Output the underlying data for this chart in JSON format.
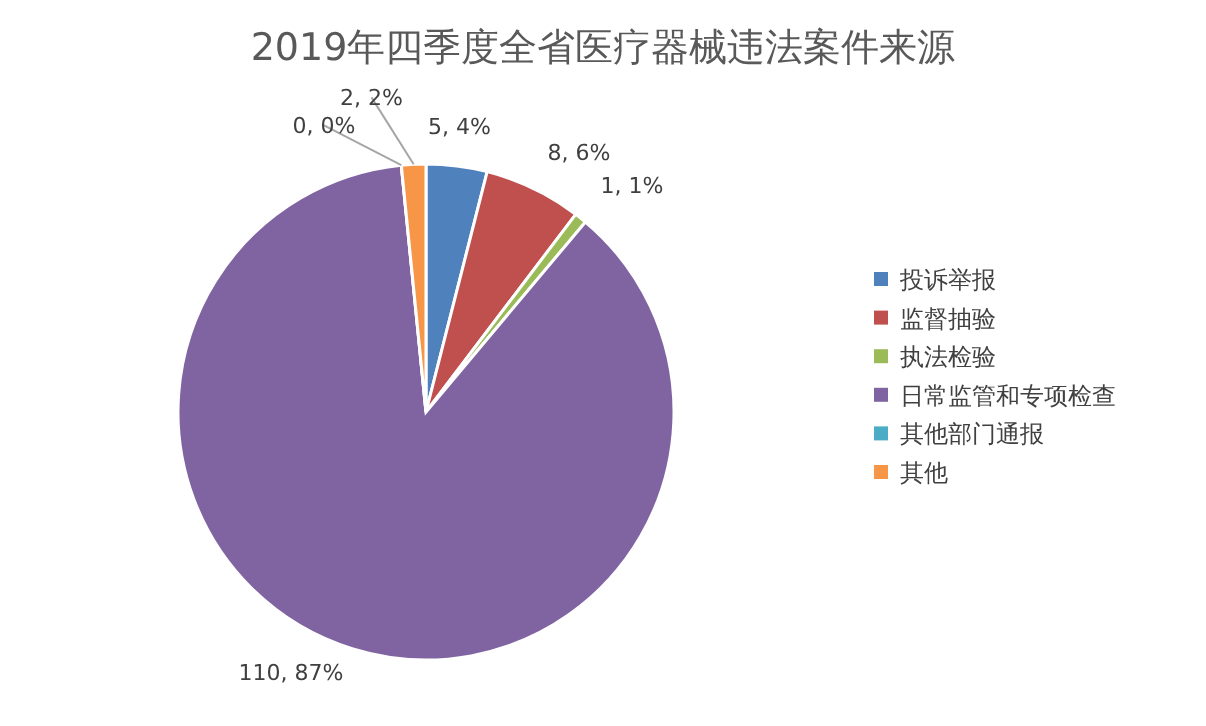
{
  "chart_data": {
    "type": "pie",
    "title": "2019年四季度全省医疗器械违法案件来源",
    "categories": [
      "投诉举报",
      "监督抽验",
      "执法检验",
      "日常监管和专项检查",
      "其他部门通报",
      "其他"
    ],
    "values": [
      5,
      8,
      1,
      110,
      0,
      2
    ],
    "value_labels": [
      "5, 4%",
      "8, 6%",
      "1, 1%",
      "110, 87%",
      "0, 0%",
      "2, 2%"
    ],
    "colors": [
      "#4f81bd",
      "#c0504d",
      "#9bbb59",
      "#8064a2",
      "#4bacc6",
      "#f79646"
    ],
    "legend": "right"
  }
}
